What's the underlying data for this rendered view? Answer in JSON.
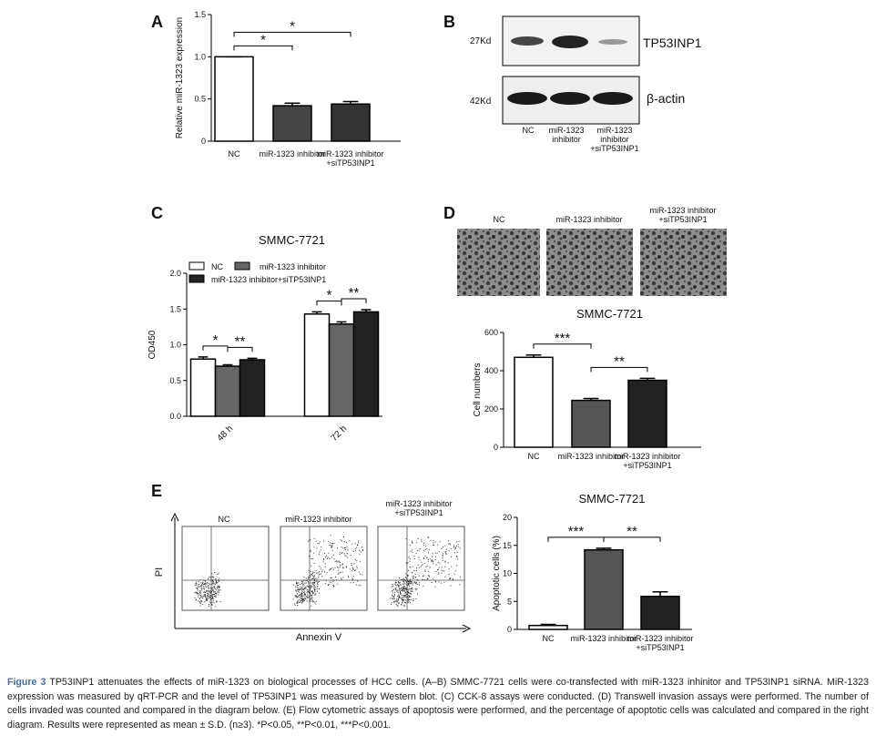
{
  "panel_letters": [
    "A",
    "B",
    "C",
    "D",
    "E"
  ],
  "chart_data": [
    {
      "type": "bar",
      "y_label": "Relative miR-1323 expression",
      "categories": [
        "NC",
        "miR-1323 inhibitor",
        "miR-1323 inhibitor\n+siTP53INP1"
      ],
      "values": [
        1.0,
        0.42,
        0.44
      ],
      "errors": [
        0,
        0.03,
        0.03
      ],
      "colors": [
        "#ffffff",
        "#444444",
        "#333333"
      ],
      "ylim": [
        0,
        1.5
      ],
      "yticks": [
        0,
        0.5,
        {
          "value": 1,
          "label": "1.0"
        },
        1.5
      ],
      "significance": [
        {
          "from": 0,
          "to": 1,
          "label": "*"
        },
        {
          "from": 0,
          "to": 2,
          "label": "*"
        }
      ]
    },
    {
      "type": "grouped-bar",
      "title": "SMMC-7721",
      "y_label": "OD450",
      "categories": [
        "48 h",
        "72 h"
      ],
      "series": [
        {
          "name": "NC",
          "color": "#ffffff",
          "values": [
            0.8,
            1.43
          ],
          "errors": [
            0.03,
            0.03
          ]
        },
        {
          "name": "miR-1323 inhibitor",
          "color": "#666666",
          "values": [
            0.7,
            1.29
          ],
          "errors": [
            0.02,
            0.03
          ]
        },
        {
          "name": "miR-1323 inhibitor+siTP53INP1",
          "color": "#222222",
          "values": [
            0.79,
            1.46
          ],
          "errors": [
            0.02,
            0.03
          ]
        }
      ],
      "ylim": [
        0,
        2
      ],
      "yticks": [
        {
          "value": 0,
          "label": "0.0"
        },
        0.5,
        {
          "value": 1,
          "label": "1.0"
        },
        1.5,
        {
          "value": 2,
          "label": "2.0"
        }
      ],
      "significance": [
        {
          "group": 0,
          "from": 0,
          "to": 1,
          "label": "*"
        },
        {
          "group": 0,
          "from": 1,
          "to": 2,
          "label": "**"
        },
        {
          "group": 1,
          "from": 0,
          "to": 1,
          "label": "*"
        },
        {
          "group": 1,
          "from": 1,
          "to": 2,
          "label": "**"
        }
      ]
    },
    {
      "type": "bar",
      "title": "SMMC-7721",
      "y_label": "Cell numbers",
      "categories": [
        "NC",
        "miR-1323 inhibitor",
        "miR-1323 inhibitor\n+siTP53INP1"
      ],
      "values": [
        470,
        245,
        350
      ],
      "errors": [
        12,
        10,
        10
      ],
      "colors": [
        "#ffffff",
        "#555555",
        "#222222"
      ],
      "ylim": [
        0,
        600
      ],
      "yticks": [
        0,
        200,
        400,
        600
      ],
      "significance": [
        {
          "from": 0,
          "to": 1,
          "label": "***"
        },
        {
          "from": 1,
          "to": 2,
          "label": "**"
        }
      ]
    },
    {
      "type": "bar",
      "title": "SMMC-7721",
      "y_label": "Apoptotic cells (%)",
      "categories": [
        "NC",
        "miR-1323 inhibitor",
        "miR-1323 inhibitor\n+siTP53INP1"
      ],
      "values": [
        0.7,
        14.2,
        5.9
      ],
      "errors": [
        0.2,
        0.3,
        0.8
      ],
      "colors": [
        "#ffffff",
        "#555555",
        "#222222"
      ],
      "ylim": [
        0,
        20
      ],
      "yticks": [
        0,
        5,
        10,
        15,
        20
      ],
      "significance": [
        {
          "from": 0,
          "to": 1,
          "label": "***"
        },
        {
          "from": 1,
          "to": 2,
          "label": "**"
        }
      ]
    }
  ],
  "blot": {
    "bands": [
      {
        "size": "27Kd",
        "protein": "TP53INP1"
      },
      {
        "size": "42Kd",
        "protein": "β-actin"
      }
    ],
    "lanes": [
      "NC",
      "miR-1323\ninhibitor",
      "miR-1323\ninhibitor\n+siTP53INP1"
    ]
  },
  "invasion_images": {
    "labels": [
      "NC",
      "miR-1323 inhibitor",
      "miR-1323 inhibitor\n+siTP53INP1"
    ]
  },
  "flow": {
    "panels": [
      "NC",
      "miR-1323 inhibitor",
      "miR-1323 inhibitor\n+siTP53INP1"
    ],
    "y_label": "PI",
    "x_label": "Annexin V"
  },
  "caption": {
    "label": "Figure 3",
    "text": "TP53INP1 attenuates the effects of miR-1323 on biological processes of HCC cells. (A–B) SMMC-7721 cells were co-transfected with miR-1323 inhinitor and TP53INP1 siRNA. MiR-1323 expression was measured by qRT-PCR and the level of TP53INP1 was measured by Western blot. (C) CCK-8 assays were conducted. (D) Transwell invasion assays were performed. The number of cells invaded was counted and compared in the diagram below. (E) Flow cytometric assays of apoptosis were performed, and the percentage of apoptotic cells was calculated and compared in the right diagram. Results were represented as mean ± S.D. (n≥3). *P<0.05, **P<0.01, ***P<0.001."
  }
}
